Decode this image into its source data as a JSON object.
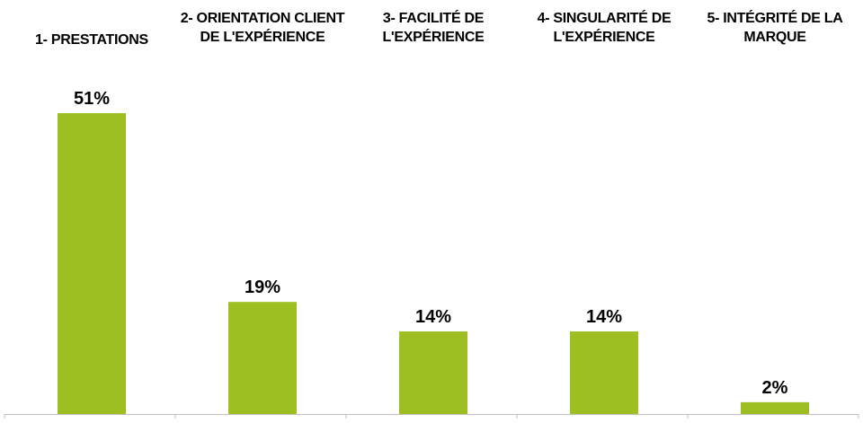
{
  "chart_data": {
    "type": "bar",
    "categories": [
      [
        "1- PRESTATIONS"
      ],
      [
        "2- ORIENTATION CLIENT",
        "DE L'EXPÉRIENCE"
      ],
      [
        "3- FACILITÉ DE",
        "L'EXPÉRIENCE"
      ],
      [
        "4- SINGULARITÉ DE",
        "L'EXPÉRIENCE"
      ],
      [
        "5- INTÉGRITÉ DE LA",
        "MARQUE"
      ]
    ],
    "values": [
      51,
      19,
      14,
      14,
      2
    ],
    "data_labels": [
      "51%",
      "19%",
      "14%",
      "14%",
      "2%"
    ],
    "ylim": [
      0,
      51
    ],
    "grid": false,
    "colors": {
      "bar": "#9dbf22",
      "axis": "#bfbfbf",
      "text": "#000000"
    }
  }
}
